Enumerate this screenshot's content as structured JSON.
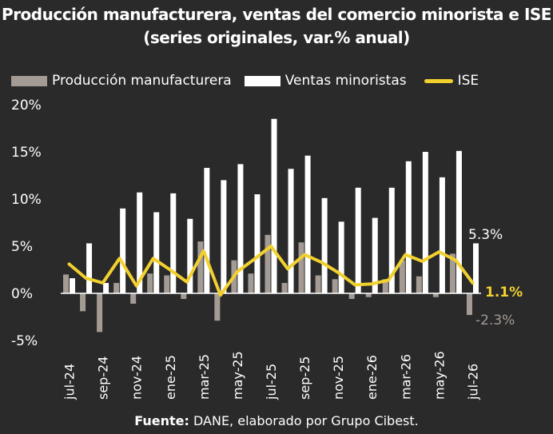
{
  "title_line1": "Producción manufacturera, ventas del comercio minorista e ISE",
  "title_line2": "(series originales, var.% anual)",
  "legend": {
    "manufactura": "Producción manufacturera",
    "minoristas": "Ventas minoristas",
    "ise": "ISE"
  },
  "colors": {
    "background": "#2a2a2b",
    "manufactura": "#a39b94",
    "minoristas": "#ffffff",
    "ise": "#f2d12e"
  },
  "footer": {
    "bold": "Fuente:",
    "text": " DANE, elaborado por Grupo Cibest."
  },
  "chart_data": {
    "type": "bar",
    "title": "Producción manufacturera, ventas del comercio minorista e ISE",
    "subtitle": "(series originales, var.% anual)",
    "categories": [
      "jul-24",
      "ago-24",
      "sep-24",
      "oct-24",
      "nov-24",
      "dic-24",
      "ene-25",
      "feb-25",
      "mar-25",
      "abr-25",
      "may-25",
      "jun-25",
      "jul-25",
      "ago-25",
      "sep-25",
      "oct-25",
      "nov-25",
      "dic-25",
      "ene-26",
      "feb-26",
      "mar-26",
      "abr-26",
      "may-26",
      "jun-26",
      "jul-26"
    ],
    "tick_labels": [
      "jul-24",
      "",
      "sep-24",
      "",
      "nov-24",
      "",
      "ene-25",
      "",
      "mar-25",
      "",
      "may-25",
      "",
      "jul-25",
      "",
      "sep-25",
      "",
      "nov-25",
      "",
      "ene-26",
      "",
      "mar-26",
      "",
      "may-26",
      "",
      "jul-26"
    ],
    "yticks": [
      -5,
      0,
      5,
      10,
      15,
      20
    ],
    "ytick_labels": [
      "-5%",
      "0%",
      "5%",
      "10%",
      "15%",
      "20%"
    ],
    "ylim": [
      -5,
      20
    ],
    "series": [
      {
        "name": "Producción manufacturera",
        "kind": "bar",
        "values": [
          2.0,
          -1.9,
          -4.1,
          1.1,
          -1.1,
          2.1,
          1.9,
          -0.6,
          5.5,
          -2.9,
          3.5,
          2.1,
          6.2,
          1.1,
          5.4,
          1.9,
          1.5,
          -0.6,
          -0.4,
          1.5,
          3.5,
          1.8,
          -0.4,
          4.2,
          -2.3
        ]
      },
      {
        "name": "Ventas minoristas",
        "kind": "bar",
        "values": [
          1.6,
          5.3,
          1.1,
          9.0,
          10.7,
          8.6,
          10.6,
          7.9,
          13.3,
          12.0,
          13.7,
          10.5,
          18.5,
          13.2,
          14.6,
          10.1,
          7.6,
          11.2,
          8.0,
          11.2,
          14.0,
          15.0,
          12.3,
          15.1,
          5.3
        ]
      },
      {
        "name": "ISE",
        "kind": "line",
        "values": [
          3.1,
          1.6,
          1.1,
          3.7,
          0.8,
          3.7,
          2.5,
          1.2,
          4.5,
          -0.2,
          2.3,
          3.6,
          5.0,
          2.6,
          4.1,
          3.3,
          2.2,
          0.9,
          1.0,
          1.4,
          4.1,
          3.4,
          4.4,
          3.5,
          1.1
        ]
      }
    ],
    "annotations": [
      {
        "series": "Ventas minoristas",
        "text": "5.3%"
      },
      {
        "series": "ISE",
        "text": "1.1%"
      },
      {
        "series": "Producción manufacturera",
        "text": "-2.3%"
      }
    ],
    "legend_position": "top",
    "grid": false
  }
}
